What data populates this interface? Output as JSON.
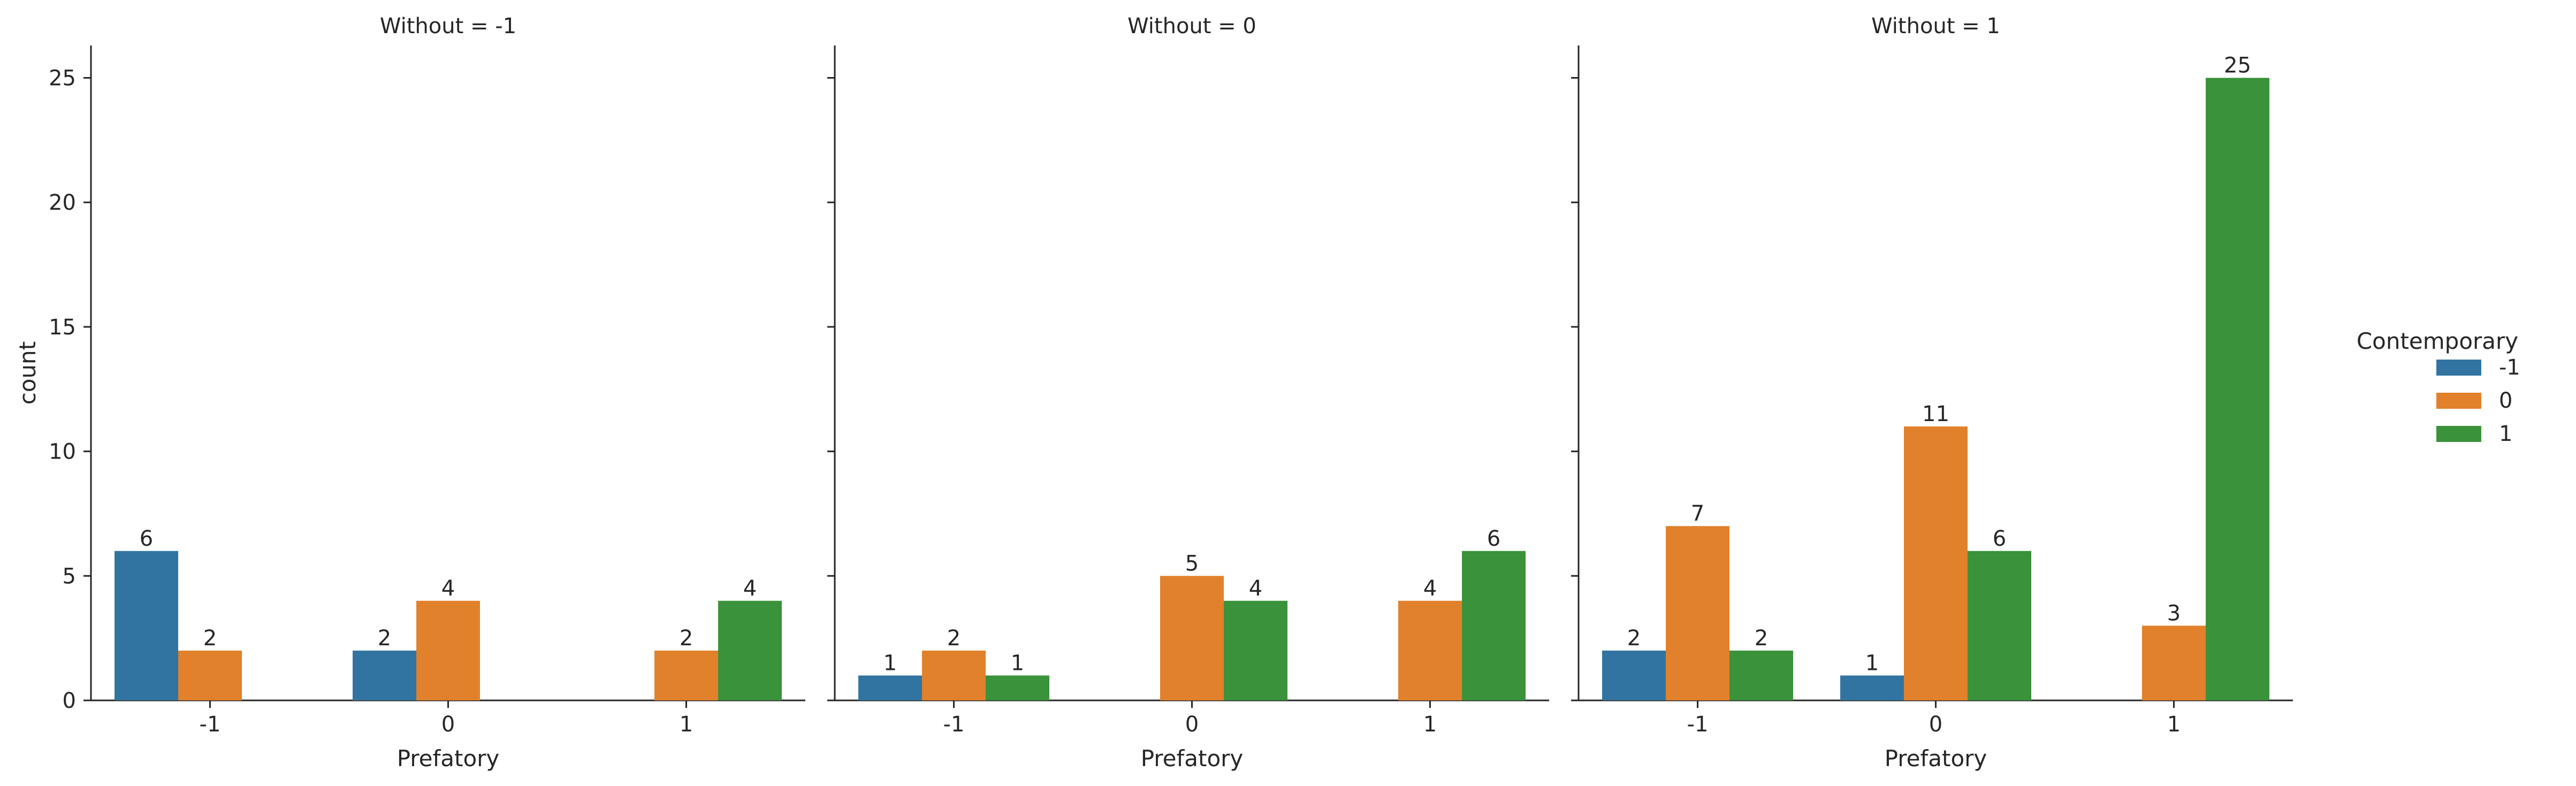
{
  "chart_data": {
    "type": "bar",
    "layout": "faceted",
    "ylabel": "count",
    "xlabel": "Prefatory",
    "ylim": [
      0,
      26.3
    ],
    "yticks": [
      0,
      5,
      10,
      15,
      20,
      25
    ],
    "categories": [
      "-1",
      "0",
      "1"
    ],
    "hue": {
      "title": "Contemporary",
      "levels": [
        {
          "name": "-1",
          "color": "#3274a1"
        },
        {
          "name": "0",
          "color": "#e1812c"
        },
        {
          "name": "1",
          "color": "#3a923a"
        }
      ]
    },
    "legend_placement": "right",
    "grid": false,
    "facets": [
      {
        "title": "Without = -1",
        "series": [
          {
            "name": "-1",
            "values": [
              6,
              2,
              null
            ]
          },
          {
            "name": "0",
            "values": [
              2,
              4,
              2
            ]
          },
          {
            "name": "1",
            "values": [
              null,
              null,
              4
            ]
          }
        ]
      },
      {
        "title": "Without = 0",
        "series": [
          {
            "name": "-1",
            "values": [
              1,
              null,
              null
            ]
          },
          {
            "name": "0",
            "values": [
              2,
              5,
              4
            ]
          },
          {
            "name": "1",
            "values": [
              1,
              4,
              6
            ]
          }
        ]
      },
      {
        "title": "Without = 1",
        "series": [
          {
            "name": "-1",
            "values": [
              2,
              1,
              null
            ]
          },
          {
            "name": "0",
            "values": [
              7,
              11,
              3
            ]
          },
          {
            "name": "1",
            "values": [
              2,
              6,
              25
            ]
          }
        ]
      }
    ]
  }
}
